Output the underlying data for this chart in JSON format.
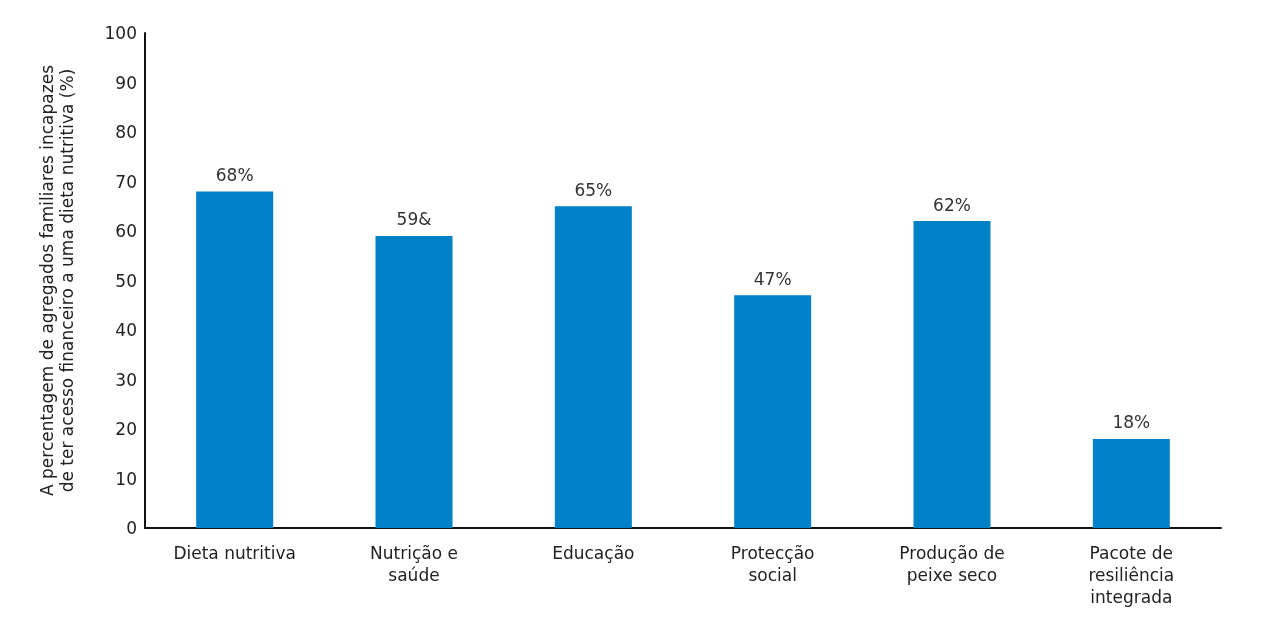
{
  "chart_data": {
    "type": "bar",
    "ylabel": "A percentagem de agregados familiares incapazes\nde ter acesso financeiro a uma dieta nutritiva (%)",
    "categories": [
      "Dieta nutritiva",
      "Nutrição e\nsaúde",
      "Educação",
      "Protecção\nsocial",
      "Produção de\npeixe seco",
      "Pacote de\nresiliência\nintegrada"
    ],
    "values": [
      68,
      59,
      65,
      47,
      62,
      18
    ],
    "value_labels": [
      "68%",
      "59&",
      "65%",
      "47%",
      "62%",
      "18%"
    ],
    "color": "#0080c6",
    "ylim": [
      0,
      100
    ],
    "yticks": [
      0,
      10,
      20,
      30,
      40,
      50,
      60,
      70,
      80,
      90,
      100
    ],
    "grid": false
  }
}
